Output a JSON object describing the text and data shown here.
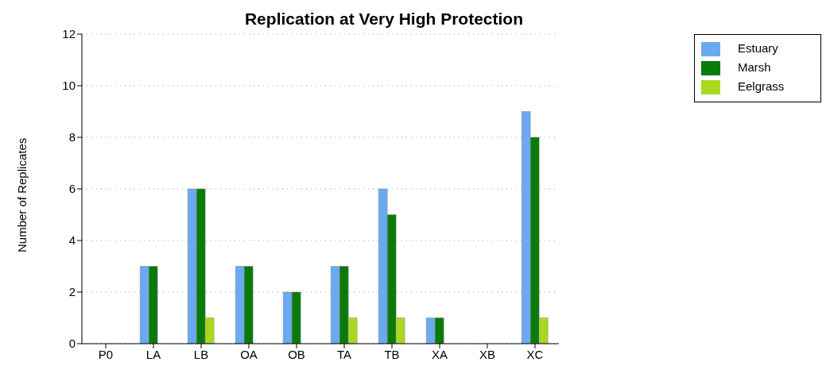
{
  "chart_data": {
    "type": "bar",
    "title": "Replication at Very High Protection",
    "ylabel": "Number of Replicates",
    "categories": [
      "P0",
      "LA",
      "LB",
      "OA",
      "OB",
      "TA",
      "TB",
      "XA",
      "XB",
      "XC"
    ],
    "series": [
      {
        "name": "Estuary",
        "color": "#6aaaf0",
        "values": [
          0,
          3,
          6,
          3,
          2,
          3,
          6,
          1,
          0,
          9
        ]
      },
      {
        "name": "Marsh",
        "color": "#0a7a0a",
        "values": [
          0,
          3,
          6,
          3,
          2,
          3,
          5,
          1,
          0,
          8
        ]
      },
      {
        "name": "Eelgrass",
        "color": "#a8d820",
        "values": [
          0,
          0,
          1,
          0,
          0,
          1,
          1,
          0,
          0,
          1
        ]
      }
    ],
    "ylim": [
      0,
      12
    ],
    "yticks": [
      0,
      2,
      4,
      6,
      8,
      10,
      12
    ],
    "grid": "y",
    "legend": "top right"
  }
}
